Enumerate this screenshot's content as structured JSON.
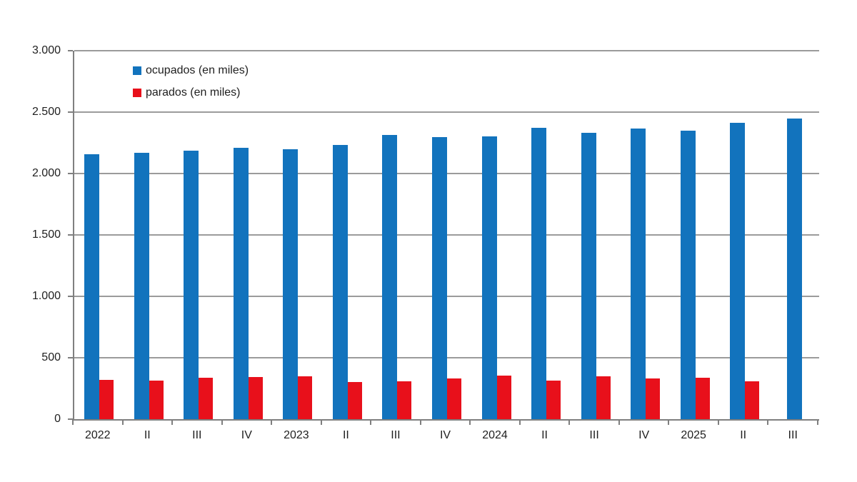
{
  "chart_data": {
    "type": "bar",
    "title": "",
    "xlabel": "",
    "ylabel": "",
    "categories": [
      "2022",
      "II",
      "III",
      "IV",
      "2023",
      "II",
      "III",
      "IV",
      "2024",
      "II",
      "III",
      "IV",
      "2025",
      "II",
      "III"
    ],
    "series": [
      {
        "name": "ocupados (en miles)",
        "color": "#1273BD",
        "values": [
          2155,
          2170,
          2185,
          2210,
          2200,
          2235,
          2315,
          2295,
          2300,
          2370,
          2330,
          2365,
          2350,
          2410,
          2450
        ]
      },
      {
        "name": "parados (en miles)",
        "color": "#E8101B",
        "values": [
          320,
          315,
          340,
          345,
          350,
          305,
          310,
          330,
          355,
          315,
          350,
          330,
          340,
          310,
          null
        ]
      }
    ],
    "ylim": [
      0,
      3000
    ],
    "y_ticks": [
      {
        "label": "0",
        "value": 0
      },
      {
        "label": "500",
        "value": 500
      },
      {
        "label": "1.000",
        "value": 1000
      },
      {
        "label": "1.500",
        "value": 1500
      },
      {
        "label": "2.000",
        "value": 2000
      },
      {
        "label": "2.500",
        "value": 2500
      },
      {
        "label": "3.000",
        "value": 3000
      }
    ],
    "grid": true,
    "legend_position": "top-left-inside"
  },
  "colors": {
    "ocupados": "#1273BD",
    "parados": "#E8101B",
    "gridline": "#9B9B9B",
    "axis": "#7F7F7F",
    "text": "#1F1F1F",
    "background": "#FFFFFF"
  }
}
